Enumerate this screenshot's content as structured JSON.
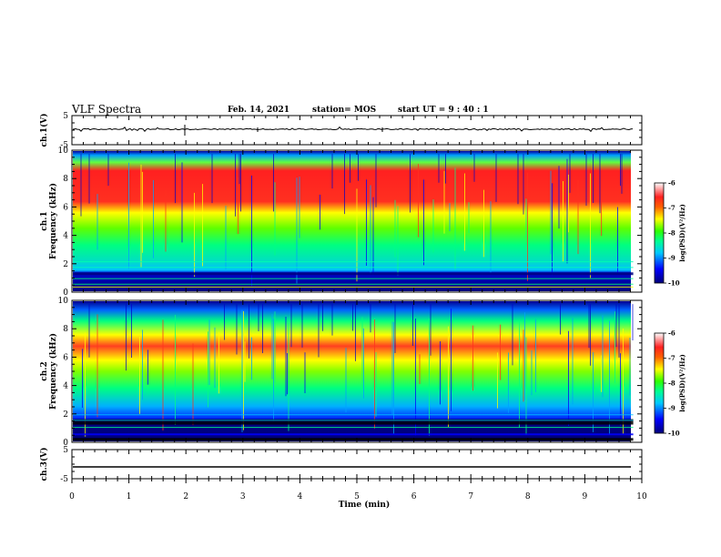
{
  "header": {
    "title": "VLF Spectra",
    "date": "Feb. 14, 2021",
    "station": "station= MOS",
    "start": "start  UT =   9 : 40 : 1"
  },
  "chart_data": [
    {
      "type": "line",
      "ylabel": "ch.1(V)",
      "ylim": [
        -5,
        5
      ],
      "yticks": [
        "5",
        "-5"
      ]
    },
    {
      "type": "heatmap",
      "ylabel": "ch.1\nFrequency (kHz)",
      "ylim": [
        0,
        10
      ],
      "yticks": [
        "0",
        "2",
        "4",
        "6",
        "8",
        "10"
      ],
      "intense_band_khz": [
        6,
        9
      ],
      "colorbar": {
        "label": "log(PSD)(V²/Hz)",
        "range": [
          -10,
          -6
        ],
        "ticks": [
          "-6",
          "-7",
          "-8",
          "-9",
          "-10"
        ]
      }
    },
    {
      "type": "heatmap",
      "ylabel": "ch.2\nFrequency (kHz)",
      "ylim": [
        0,
        10
      ],
      "yticks": [
        "0",
        "2",
        "4",
        "6",
        "8",
        "10"
      ],
      "intense_band_khz": [
        5.5,
        8
      ],
      "colorbar": {
        "label": "log(PSD)(V²/Hz)",
        "range": [
          -10,
          -6
        ],
        "ticks": [
          "-6",
          "-7",
          "-8",
          "-9",
          "-10"
        ]
      }
    },
    {
      "type": "line",
      "ylabel": "ch.3(V)",
      "ylim": [
        -5,
        5
      ],
      "yticks": [
        "5",
        "-5"
      ]
    }
  ],
  "xaxis": {
    "label": "Time (min)",
    "xlim": [
      0,
      10
    ],
    "ticks": [
      "0",
      "1",
      "2",
      "3",
      "4",
      "5",
      "6",
      "7",
      "8",
      "9",
      "10"
    ],
    "data_end": 9.85
  }
}
